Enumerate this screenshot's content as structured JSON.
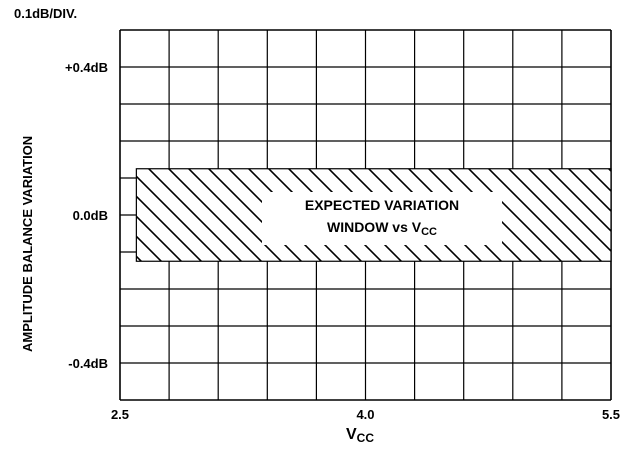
{
  "chart_data": {
    "type": "area",
    "scale_label": "0.1dB/DIV.",
    "ylabel": "AMPLITUDE BALANCE VARIATION",
    "xlabel": {
      "main": "V",
      "sub": "CC"
    },
    "xlim": [
      2.5,
      5.5
    ],
    "ylim": [
      -0.5,
      0.5
    ],
    "x_ticks": [
      {
        "value": 2.5,
        "label": "2.5"
      },
      {
        "value": 4.0,
        "label": "4.0"
      },
      {
        "value": 5.5,
        "label": "5.5"
      }
    ],
    "y_ticks": [
      {
        "value": 0.4,
        "label": "+0.4dB"
      },
      {
        "value": 0.0,
        "label": "0.0dB"
      },
      {
        "value": -0.4,
        "label": "-0.4dB"
      }
    ],
    "grid": true,
    "grid_x_divisions": 10,
    "grid_y_divisions": 10,
    "window": {
      "x_range": [
        2.6,
        5.5
      ],
      "y_range": [
        -0.125,
        0.125
      ],
      "fill": "hatched",
      "label_line1": "EXPECTED VARIATION",
      "label_line2_main": "WINDOW vs V",
      "label_line2_sub": "CC"
    }
  }
}
